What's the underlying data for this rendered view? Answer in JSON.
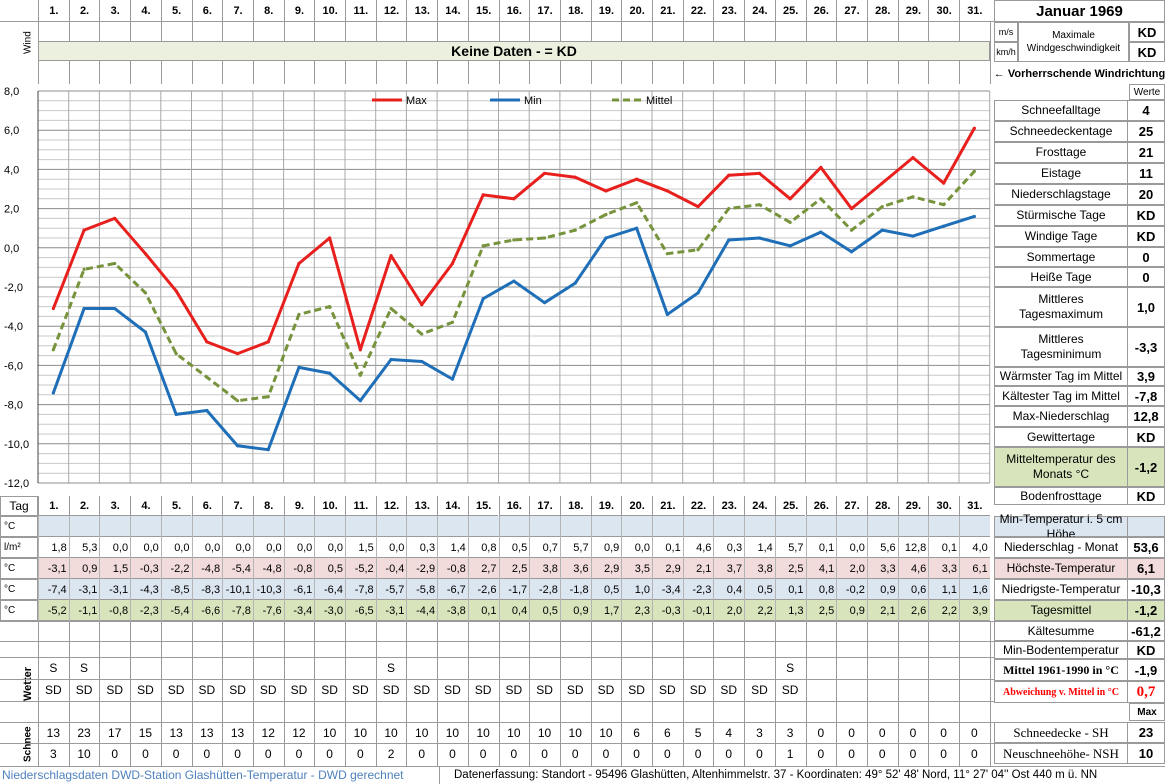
{
  "header": {
    "days": [
      "1.",
      "2.",
      "3.",
      "4.",
      "5.",
      "6.",
      "7.",
      "8.",
      "9.",
      "10.",
      "11.",
      "12.",
      "13.",
      "14.",
      "15.",
      "16.",
      "17.",
      "18.",
      "19.",
      "20.",
      "21.",
      "22.",
      "23.",
      "24.",
      "25.",
      "26.",
      "27.",
      "28.",
      "29.",
      "30.",
      "31."
    ],
    "month_title": "Januar 1969"
  },
  "wind": {
    "label": "Wind",
    "banner": "Keine Daten -  = KD",
    "unit_ms": "m/s",
    "unit_kmh": "km/h",
    "max_label": "Maximale Windgeschwindigkeit",
    "max_ms": "KD",
    "max_kmh": "KD",
    "direction_label": "← Vorherrschende Windrichtung"
  },
  "chart_data": {
    "type": "line",
    "title": "",
    "xlabel": "",
    "ylabel": "",
    "x": [
      1,
      2,
      3,
      4,
      5,
      6,
      7,
      8,
      9,
      10,
      11,
      12,
      13,
      14,
      15,
      16,
      17,
      18,
      19,
      20,
      21,
      22,
      23,
      24,
      25,
      26,
      27,
      28,
      29,
      30,
      31
    ],
    "ylim": [
      -12.0,
      8.0
    ],
    "yticks": [
      "8,0",
      "6,0",
      "4,0",
      "2,0",
      "0,0",
      "-2,0",
      "-4,0",
      "-6,0",
      "-8,0",
      "-10,0",
      "-12,0"
    ],
    "grid": true,
    "legend_position": "top-center",
    "series": [
      {
        "name": "Max",
        "color": "#e8201d",
        "dash": "none",
        "values": [
          -3.1,
          0.9,
          1.5,
          -0.3,
          -2.2,
          -4.8,
          -5.4,
          -4.8,
          -0.8,
          0.5,
          -5.2,
          -0.4,
          -2.9,
          -0.8,
          2.7,
          2.5,
          3.8,
          3.6,
          2.9,
          3.5,
          2.9,
          2.1,
          3.7,
          3.8,
          2.5,
          4.1,
          2.0,
          3.3,
          4.6,
          3.3,
          6.1
        ]
      },
      {
        "name": "Min",
        "color": "#1f6fb8",
        "dash": "none",
        "values": [
          -7.4,
          -3.1,
          -3.1,
          -4.3,
          -8.5,
          -8.3,
          -10.1,
          -10.3,
          -6.1,
          -6.4,
          -7.8,
          -5.7,
          -5.8,
          -6.7,
          -2.6,
          -1.7,
          -2.8,
          -1.8,
          0.5,
          1.0,
          -3.4,
          -2.3,
          0.4,
          0.5,
          0.1,
          0.8,
          -0.2,
          0.9,
          0.6,
          1.1,
          1.6
        ]
      },
      {
        "name": "Mittel",
        "color": "#77933c",
        "dash": "7,4",
        "values": [
          -5.2,
          -1.1,
          -0.8,
          -2.3,
          -5.4,
          -6.6,
          -7.8,
          -7.6,
          -3.4,
          -3.0,
          -6.5,
          -3.1,
          -4.4,
          -3.8,
          0.1,
          0.4,
          0.5,
          0.9,
          1.7,
          2.3,
          -0.3,
          -0.1,
          2.0,
          2.2,
          1.3,
          2.5,
          0.9,
          2.1,
          2.6,
          2.2,
          3.9
        ]
      }
    ]
  },
  "stats": {
    "werte_label": "Werte",
    "rows": [
      {
        "label": "Schneefalltage",
        "value": "4"
      },
      {
        "label": "Schneedeckentage",
        "value": "25"
      },
      {
        "label": "Frosttage",
        "value": "21"
      },
      {
        "label": "Eistage",
        "value": "11"
      },
      {
        "label": "Niederschlagstage",
        "value": "20"
      },
      {
        "label": "Stürmische Tage",
        "value": "KD"
      },
      {
        "label": "Windige Tage",
        "value": "KD"
      },
      {
        "label": "Sommertage",
        "value": "0"
      },
      {
        "label": "Heiße Tage",
        "value": "0"
      },
      {
        "label": "Mittleres Tagesmaximum",
        "value": "1,0"
      },
      {
        "label": "Mittleres Tagesminimum",
        "value": "-3,3"
      },
      {
        "label": "Wärmster Tag im Mittel",
        "value": "3,9"
      },
      {
        "label": "Kältester Tag im Mittel",
        "value": "-7,8"
      },
      {
        "label": "Max-Niederschlag",
        "value": "12,8"
      },
      {
        "label": "Gewittertage",
        "value": "KD"
      },
      {
        "label": "Mitteltemperatur des Monats °C",
        "value": "-1,2"
      },
      {
        "label": "Bodenfrosttage",
        "value": "KD"
      }
    ]
  },
  "table": {
    "tag_label": "Tag",
    "ground_row": {
      "unit": "°C",
      "label": "Min-Temperatur i. 5 cm Höhe",
      "value": "",
      "bg": "#dce6f1"
    },
    "precip_row": {
      "unit": "l/m²",
      "label": "Niederschlag - Monat",
      "value": "53,6",
      "bg": "#ffffff",
      "values": [
        "1,8",
        "5,3",
        "0,0",
        "0,0",
        "0,0",
        "0,0",
        "0,0",
        "0,0",
        "0,0",
        "0,0",
        "1,5",
        "0,0",
        "0,3",
        "1,4",
        "0,8",
        "0,5",
        "0,7",
        "5,7",
        "0,9",
        "0,0",
        "0,1",
        "4,6",
        "0,3",
        "1,4",
        "5,7",
        "0,1",
        "0,0",
        "5,6",
        "12,8",
        "0,1",
        "4,0"
      ]
    },
    "max_row": {
      "unit": "°C",
      "label": "Höchste-Temperatur",
      "value": "6,1",
      "bg": "#f2dcdb",
      "values": [
        "-3,1",
        "0,9",
        "1,5",
        "-0,3",
        "-2,2",
        "-4,8",
        "-5,4",
        "-4,8",
        "-0,8",
        "0,5",
        "-5,2",
        "-0,4",
        "-2,9",
        "-0,8",
        "2,7",
        "2,5",
        "3,8",
        "3,6",
        "2,9",
        "3,5",
        "2,9",
        "2,1",
        "3,7",
        "3,8",
        "2,5",
        "4,1",
        "2,0",
        "3,3",
        "4,6",
        "3,3",
        "6,1"
      ]
    },
    "min_row": {
      "unit": "°C",
      "label": "Niedrigste-Temperatur",
      "value": "-10,3",
      "bg": "#dce6f1",
      "values": [
        "-7,4",
        "-3,1",
        "-3,1",
        "-4,3",
        "-8,5",
        "-8,3",
        "-10,1",
        "-10,3",
        "-6,1",
        "-6,4",
        "-7,8",
        "-5,7",
        "-5,8",
        "-6,7",
        "-2,6",
        "-1,7",
        "-2,8",
        "-1,8",
        "0,5",
        "1,0",
        "-3,4",
        "-2,3",
        "0,4",
        "0,5",
        "0,1",
        "0,8",
        "-0,2",
        "0,9",
        "0,6",
        "1,1",
        "1,6"
      ]
    },
    "mean_row": {
      "unit": "°C",
      "label": "Tagesmittel",
      "value": "-1,2",
      "bg": "#d8e4bc",
      "values": [
        "-5,2",
        "-1,1",
        "-0,8",
        "-2,3",
        "-5,4",
        "-6,6",
        "-7,8",
        "-7,6",
        "-3,4",
        "-3,0",
        "-6,5",
        "-3,1",
        "-4,4",
        "-3,8",
        "0,1",
        "0,4",
        "0,5",
        "0,9",
        "1,7",
        "2,3",
        "-0,3",
        "-0,1",
        "2,0",
        "2,2",
        "1,3",
        "2,5",
        "0,9",
        "2,1",
        "2,6",
        "2,2",
        "3,9"
      ]
    }
  },
  "lower_stats": {
    "kaeltesumme": {
      "label": "Kältesumme",
      "value": "-61,2"
    },
    "min_boden": {
      "label": "Min-Bodentemperatur",
      "value": "KD"
    },
    "mittel_1961": {
      "label": "Mittel 1961-1990 in °C",
      "value": "-1,9"
    },
    "abweichung": {
      "label": "Abweichung v. Mittel in °C",
      "value": "0,7",
      "color": "#ff0000"
    },
    "max_label": "Max",
    "schneedecke": {
      "label": "Schneedecke -   SH",
      "value": "23"
    },
    "neuschnee": {
      "label": "Neuschneehöhe- NSH",
      "value": "10"
    }
  },
  "wetter": {
    "label": "Wetter",
    "row1": [
      "S",
      "S",
      "",
      "",
      "",
      "",
      "",
      "",
      "",
      "",
      "",
      "S",
      "",
      "",
      "",
      "",
      "",
      "",
      "",
      "",
      "",
      "",
      "",
      "",
      "S",
      "",
      "",
      "",
      "",
      "",
      ""
    ],
    "row2": [
      "SD",
      "SD",
      "SD",
      "SD",
      "SD",
      "SD",
      "SD",
      "SD",
      "SD",
      "SD",
      "SD",
      "SD",
      "SD",
      "SD",
      "SD",
      "SD",
      "SD",
      "SD",
      "SD",
      "SD",
      "SD",
      "SD",
      "SD",
      "SD",
      "SD",
      "",
      "",
      "",
      "",
      "",
      ""
    ]
  },
  "schnee": {
    "label": "Schnee",
    "sh": [
      "13",
      "23",
      "17",
      "15",
      "13",
      "13",
      "13",
      "12",
      "12",
      "10",
      "10",
      "10",
      "10",
      "10",
      "10",
      "10",
      "10",
      "10",
      "10",
      "6",
      "6",
      "5",
      "4",
      "3",
      "3",
      "0",
      "0",
      "0",
      "0",
      "0",
      "0"
    ],
    "nsh": [
      "3",
      "10",
      "0",
      "0",
      "0",
      "0",
      "0",
      "0",
      "0",
      "0",
      "0",
      "2",
      "0",
      "0",
      "0",
      "0",
      "0",
      "0",
      "0",
      "0",
      "0",
      "0",
      "0",
      "0",
      "1",
      "0",
      "0",
      "0",
      "0",
      "0",
      "0"
    ]
  },
  "footer": {
    "left": "Niederschlagsdaten DWD-Station Glashütten-Temperatur -  DWD gerechnet",
    "right": "Datenerfassung: Standort -  95496  Glashütten, Altenhimmelstr. 37 - Koordinaten: 49° 52' 48' Nord,  11° 27' 04'' Ost  440 m ü. NN"
  }
}
